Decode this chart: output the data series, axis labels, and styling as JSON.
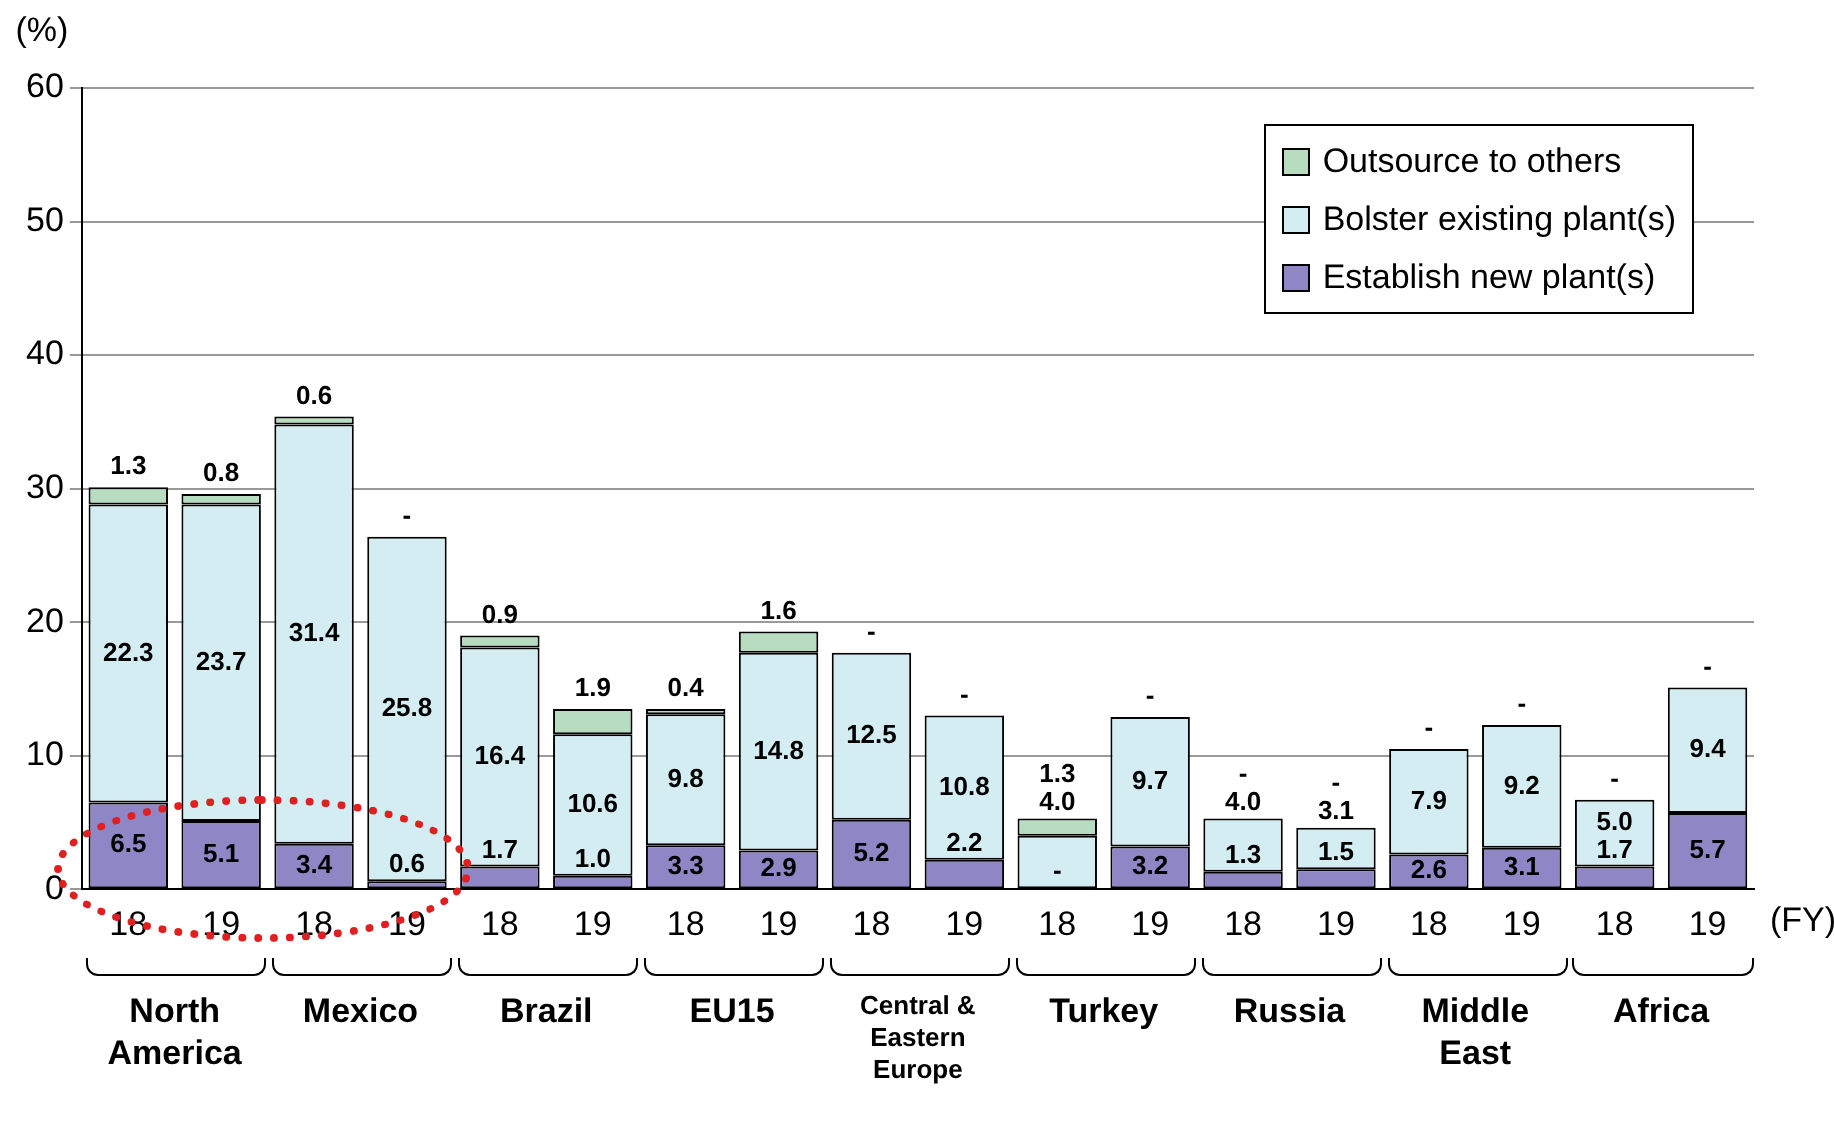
{
  "chart_data": {
    "type": "bar",
    "stacked": true,
    "ylabel": "(%)",
    "xlabel": "(FY)",
    "categories": [
      "18",
      "19",
      "18",
      "19",
      "18",
      "19",
      "18",
      "19",
      "18",
      "19",
      "18",
      "19",
      "18",
      "19",
      "18",
      "19",
      "18",
      "19"
    ],
    "annotations": [
      "North America",
      "Mexico",
      "Brazil",
      "EU15",
      "Central & Eastern Europe",
      "Turkey",
      "Russia",
      "Middle East",
      "Africa"
    ],
    "series": [
      {
        "name": "Establish new plant(s)",
        "color": "#8f86c6",
        "values": [
          6.5,
          5.1,
          3.4,
          0.6,
          1.7,
          1.0,
          3.3,
          2.9,
          5.2,
          2.2,
          0,
          3.2,
          1.3,
          1.5,
          2.6,
          3.1,
          1.7,
          5.7
        ],
        "value_labels": [
          "6.5",
          "5.1",
          "3.4",
          "0.6",
          "1.7",
          "1.0",
          "3.3",
          "2.9",
          "5.2",
          "2.2",
          "-",
          "3.2",
          "1.3",
          "1.5",
          "2.6",
          "3.1",
          "1.7",
          "5.7"
        ]
      },
      {
        "name": "Bolster existing plant(s)",
        "color": "#d4edf2",
        "values": [
          22.3,
          23.7,
          31.4,
          25.8,
          16.4,
          10.6,
          9.8,
          14.8,
          12.5,
          10.8,
          4.0,
          9.7,
          4.0,
          3.1,
          7.9,
          9.2,
          5.0,
          9.4
        ],
        "value_labels": [
          "22.3",
          "23.7",
          "31.4",
          "25.8",
          "16.4",
          "10.6",
          "9.8",
          "14.8",
          "12.5",
          "10.8",
          "4.0",
          "9.7",
          "4.0",
          "3.1",
          "7.9",
          "9.2",
          "5.0",
          "9.4"
        ]
      },
      {
        "name": "Outsource to others",
        "color": "#b8dcc0",
        "values": [
          1.3,
          0.8,
          0.6,
          0,
          0.9,
          1.9,
          0.4,
          1.6,
          0,
          0,
          1.3,
          0,
          0,
          0,
          0,
          0,
          0,
          0
        ],
        "value_labels": [
          "1.3",
          "0.8",
          "0.6",
          "-",
          "0.9",
          "1.9",
          "0.4",
          "1.6",
          "-",
          "-",
          "1.3",
          "-",
          "-",
          "-",
          "-",
          "-",
          "-",
          "-"
        ]
      }
    ],
    "ylim": [
      0,
      60
    ],
    "yticks": [
      0,
      10,
      20,
      30,
      40,
      50,
      60
    ],
    "grid": "y",
    "legend": "top right"
  }
}
